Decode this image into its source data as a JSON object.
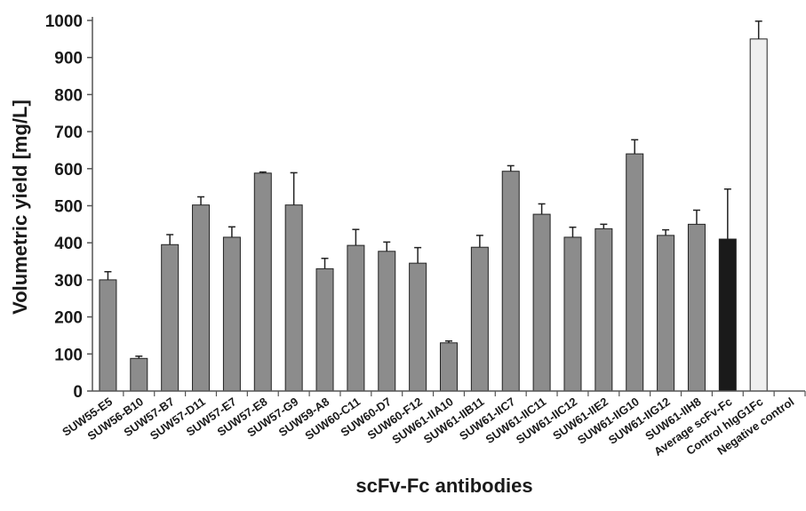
{
  "chart_data": {
    "type": "bar",
    "xlabel": "scFv-Fc antibodies",
    "ylabel": "Volumetric yield [mg/L]",
    "ylim": [
      0,
      1000
    ],
    "yticks": [
      0,
      100,
      200,
      300,
      400,
      500,
      600,
      700,
      800,
      900,
      1000
    ],
    "grid": false,
    "categories": [
      "SUW55-E5",
      "SUW56-B10",
      "SUW57-B7",
      "SUW57-D11",
      "SUW57-E7",
      "SUW57-E8",
      "SUW57-G9",
      "SUW59-A8",
      "SUW60-C11",
      "SUW60-D7",
      "SUW60-F12",
      "SUW61-IIA10",
      "SUW61-IIB11",
      "SUW61-IIC7",
      "SUW61-IIC11",
      "SUW61-IIC12",
      "SUW61-IIE2",
      "SUW61-IIG10",
      "SUW61-IIG12",
      "SUW61-IIH8",
      "Average scFv-Fc",
      "Control hIgG1Fc",
      "Negative control"
    ],
    "values": [
      300,
      88,
      395,
      502,
      415,
      588,
      502,
      330,
      393,
      377,
      345,
      130,
      388,
      593,
      477,
      415,
      438,
      640,
      420,
      450,
      410,
      950,
      0
    ],
    "error": [
      22,
      6,
      27,
      22,
      28,
      3,
      87,
      28,
      43,
      25,
      42,
      5,
      32,
      15,
      28,
      27,
      12,
      38,
      15,
      38,
      135,
      48,
      0
    ],
    "bar_colors": [
      "#8c8c8c",
      "#8c8c8c",
      "#8c8c8c",
      "#8c8c8c",
      "#8c8c8c",
      "#8c8c8c",
      "#8c8c8c",
      "#8c8c8c",
      "#8c8c8c",
      "#8c8c8c",
      "#8c8c8c",
      "#8c8c8c",
      "#8c8c8c",
      "#8c8c8c",
      "#8c8c8c",
      "#8c8c8c",
      "#8c8c8c",
      "#8c8c8c",
      "#8c8c8c",
      "#8c8c8c",
      "#1a1a1a",
      "#efefef",
      "#8c8c8c"
    ]
  }
}
